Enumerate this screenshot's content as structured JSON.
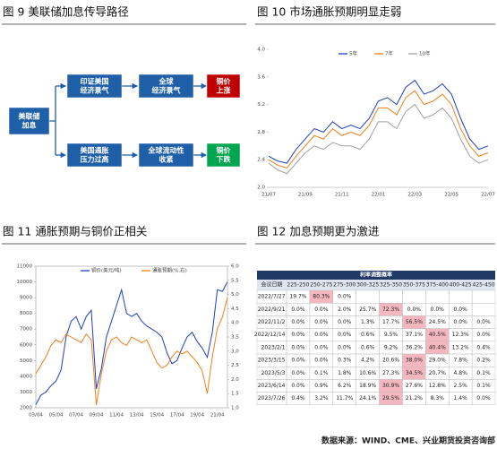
{
  "diagram": {
    "title": "图 9 美联储加息传导路径",
    "nodes": [
      {
        "label": [
          "美联储",
          "加息"
        ],
        "color": "#1f5fa8"
      },
      {
        "label": [
          "印证美国",
          "经济景气"
        ],
        "color": "#1f5fa8"
      },
      {
        "label": [
          "全球",
          "经济景气"
        ],
        "color": "#1f5fa8"
      },
      {
        "label": [
          "铜价",
          "上涨"
        ],
        "color": "#c00000"
      },
      {
        "label": [
          "美国通胀",
          "压力过高"
        ],
        "color": "#1f5fa8"
      },
      {
        "label": [
          "全球流动性",
          "收紧"
        ],
        "color": "#1f5fa8"
      },
      {
        "label": [
          "铜价",
          "下跌"
        ],
        "color": "#00a64f"
      }
    ]
  },
  "chart_data": [
    {
      "type": "line",
      "title": "图 10 市场通胀预期明显走弱",
      "categories": [
        "21/07",
        null,
        null,
        null,
        "21/09",
        null,
        null,
        null,
        "21/11",
        null,
        null,
        null,
        "22/01",
        null,
        null,
        null,
        "22/03",
        null,
        null,
        null,
        "22/05",
        null,
        null,
        null,
        "22/07"
      ],
      "series": [
        {
          "name": "5年",
          "color": "#1f3fbf",
          "values": [
            2.45,
            2.38,
            2.35,
            2.55,
            2.7,
            2.85,
            2.8,
            2.95,
            2.85,
            2.9,
            2.85,
            3.0,
            3.25,
            3.3,
            3.2,
            3.45,
            3.55,
            3.35,
            3.4,
            3.5,
            3.35,
            3.0,
            2.7,
            2.55,
            2.6
          ]
        },
        {
          "name": "7年",
          "color": "#f07f1a",
          "values": [
            2.4,
            2.32,
            2.28,
            2.45,
            2.6,
            2.75,
            2.7,
            2.85,
            2.75,
            2.8,
            2.75,
            2.9,
            3.15,
            3.15,
            3.05,
            3.3,
            3.4,
            3.2,
            3.25,
            3.35,
            3.2,
            2.85,
            2.6,
            2.45,
            2.5
          ]
        },
        {
          "name": "10年",
          "color": "#a0a0a0",
          "values": [
            2.35,
            2.25,
            2.2,
            2.35,
            2.5,
            2.6,
            2.55,
            2.65,
            2.6,
            2.6,
            2.55,
            2.7,
            2.95,
            2.95,
            2.85,
            3.1,
            3.2,
            3.0,
            3.05,
            3.15,
            3.0,
            2.7,
            2.45,
            2.35,
            2.4
          ]
        }
      ],
      "ylim": [
        2,
        4
      ],
      "yticks": [
        {
          "value": 2,
          "label": "2.0"
        },
        2.4,
        2.8,
        3.2,
        3.6,
        {
          "value": 4,
          "label": "4.0"
        }
      ]
    },
    {
      "type": "line",
      "title": "图 11 通胀预期与铜价正相关",
      "categories": [
        "03/04",
        null,
        null,
        null,
        "05/04",
        null,
        null,
        null,
        "07/04",
        null,
        null,
        null,
        "09/04",
        null,
        null,
        null,
        "11/04",
        null,
        null,
        null,
        "13/04",
        null,
        null,
        null,
        "15/04",
        null,
        null,
        null,
        "17/04",
        null,
        null,
        null,
        "19/04",
        null,
        null,
        null,
        "21/04",
        null,
        null
      ],
      "series": [
        {
          "name": "铜价(美元/吨)",
          "color": "#1f3fbf",
          "values": [
            2200,
            2800,
            3000,
            3400,
            3700,
            4400,
            6500,
            7500,
            7800,
            7000,
            7800,
            8200,
            3200,
            4500,
            6500,
            7500,
            8500,
            9500,
            8000,
            7800,
            8000,
            7500,
            7200,
            7000,
            6800,
            6500,
            5500,
            4800,
            5000,
            5800,
            6500,
            6800,
            6200,
            5800,
            5200,
            6800,
            9500,
            9400,
            10000
          ]
        },
        {
          "name": "通胀预期(%,右)",
          "color": "#f07f1a",
          "axis": "y2",
          "values": [
            2.2,
            2.5,
            2.8,
            3.2,
            3.4,
            3.3,
            3.6,
            3.5,
            3.4,
            3.3,
            3.6,
            3.4,
            1.1,
            2.2,
            3.0,
            3.4,
            3.5,
            3.3,
            3.2,
            3.5,
            3.4,
            3.3,
            3.4,
            3.0,
            2.6,
            2.4,
            2.5,
            2.8,
            3.0,
            2.9,
            3.0,
            2.8,
            2.6,
            2.3,
            1.5,
            2.8,
            3.8,
            4.2,
            4.9
          ]
        }
      ],
      "ylim": [
        2000,
        11000
      ],
      "yticks": [
        2000,
        3000,
        4000,
        5000,
        6000,
        7000,
        8000,
        9000,
        10000,
        11000
      ],
      "y2lim": [
        1,
        6
      ],
      "y2ticks": [
        {
          "value": 1,
          "label": "1.0"
        },
        1.5,
        {
          "value": 2,
          "label": "2.0"
        },
        2.5,
        {
          "value": 3,
          "label": "3.0"
        },
        3.5,
        {
          "value": 4,
          "label": "4.0"
        },
        4.5,
        {
          "value": 5,
          "label": "5.0"
        },
        5.5,
        {
          "value": 6,
          "label": "6.0"
        }
      ]
    }
  ],
  "table": {
    "title": "图 12 加息预期更为激进",
    "caption": "利率调整概率",
    "header": [
      "会议日期",
      "225-250",
      "250-275",
      "275-300",
      "300-325",
      "325-350",
      "350-375",
      "375-400",
      "400-425",
      "425-450"
    ],
    "rows": [
      [
        "2022/7/27",
        "19.7%",
        "80.3%",
        "0.0%",
        null,
        null,
        null,
        null,
        null,
        null
      ],
      [
        "2022/9/21",
        "0.0%",
        "0.0%",
        "2.0%",
        "25.7%",
        "72.3%",
        "0.0%",
        "0.0%",
        "0.0%",
        null
      ],
      [
        "2022/11/2",
        "0.0%",
        "0.0%",
        "0.0%",
        "1.3%",
        "17.7%",
        "56.5%",
        "24.5%",
        "0.0%",
        "0.0%"
      ],
      [
        "2022/12/14",
        "0.0%",
        "0.0%",
        "0.0%",
        "0.6%",
        "9.5%",
        "37.1%",
        "40.5%",
        "12.3%",
        "0.0%"
      ],
      [
        "2023/2/1",
        "0.0%",
        "0.0%",
        "0.0%",
        "0.6%",
        "9.2%",
        "36.2%",
        "40.4%",
        "13.2%",
        "0.4%"
      ],
      [
        "2023/3/15",
        "0.0%",
        "0.0%",
        "0.3%",
        "4.2%",
        "20.6%",
        "38.0%",
        "29.0%",
        "7.8%",
        "0.2%"
      ],
      [
        "2023/5/3",
        "0.0%",
        "0.1%",
        "1.8%",
        "10.6%",
        "27.3%",
        "34.5%",
        "20.7%",
        "4.8%",
        "0.1%"
      ],
      [
        "2023/6/14",
        "0.0%",
        "0.9%",
        "6.2%",
        "18.9%",
        "30.9%",
        "27.6%",
        "12.8%",
        "2.5%",
        "0.1%"
      ],
      [
        "2023/7/26",
        "0.4%",
        "3.2%",
        "11.7%",
        "24.1%",
        "29.5%",
        "21.2%",
        "8.3%",
        "1.4%",
        "0.0%"
      ]
    ],
    "highlight": [
      2,
      5,
      6,
      7,
      7,
      6,
      6,
      5,
      5
    ],
    "highlight_color": "#f4b6bf"
  },
  "footer": "数据来源：WIND、CME、兴业期货投资咨询部"
}
